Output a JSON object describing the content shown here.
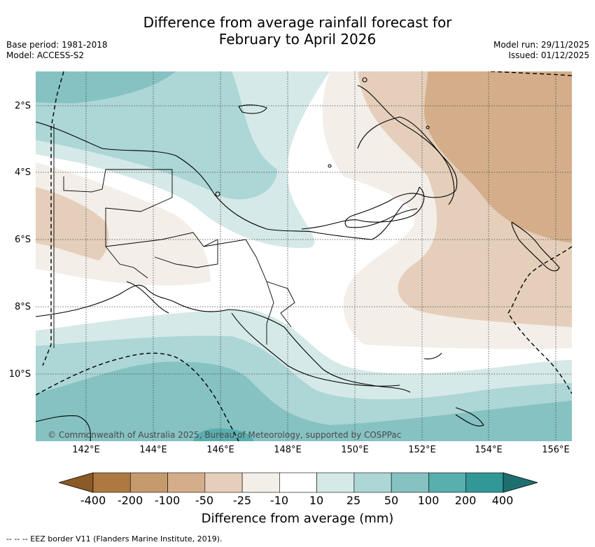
{
  "title": {
    "line1": "Difference from average rainfall forecast for",
    "line2": "February to April 2026"
  },
  "meta": {
    "base_period": "Base period: 1981-2018",
    "model": "Model: ACCESS-S2",
    "model_run": "Model run: 29/11/2025",
    "issued": "Issued: 01/12/2025"
  },
  "map": {
    "lat_labels": [
      "2°S",
      "4°S",
      "6°S",
      "8°S",
      "10°S"
    ],
    "lon_labels": [
      "142°E",
      "144°E",
      "146°E",
      "148°E",
      "150°E",
      "152°E",
      "154°E",
      "156°E"
    ],
    "copyright": "© Commonwealth of Australia 2025, Bureau of Meteorology, supported by COSPPac"
  },
  "legend": {
    "ticks": [
      "-400",
      "-200",
      "-100",
      "-50",
      "-25",
      "-10",
      "10",
      "25",
      "50",
      "100",
      "200",
      "400"
    ],
    "colors": [
      "#8c5a26",
      "#ad7841",
      "#c59a6d",
      "#d4ae8a",
      "#e5cfbb",
      "#f3eee8",
      "#ffffff",
      "#d5e9e8",
      "#add6d6",
      "#86c2c2",
      "#59aeae",
      "#329797",
      "#1e7070"
    ],
    "title": "Difference from average (mm)"
  },
  "footer": {
    "eez_note": "--  --  -- EEZ border V11 (Flanders Marine Institute, 2019)."
  }
}
